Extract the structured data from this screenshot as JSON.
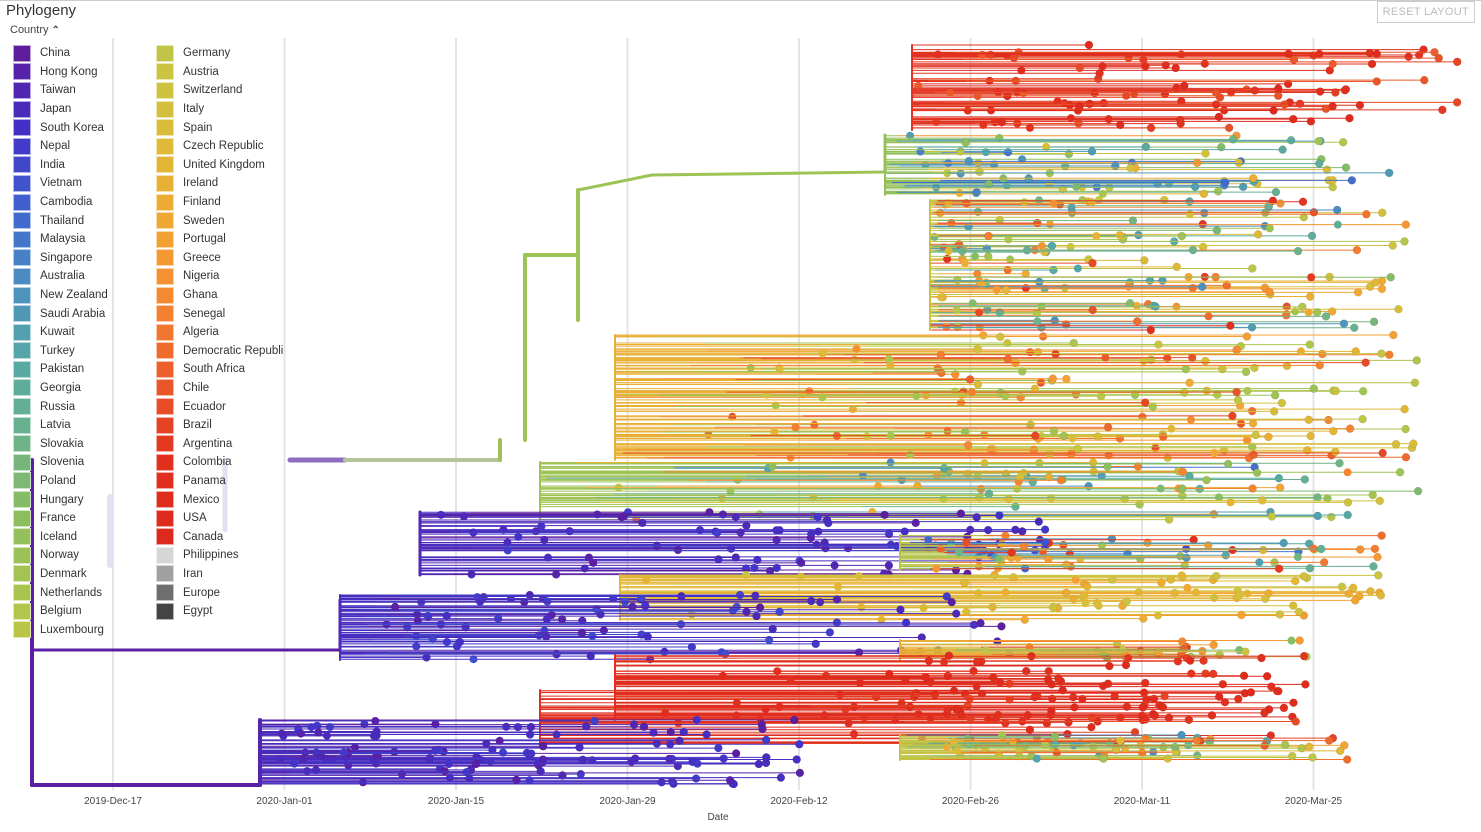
{
  "panel": {
    "title": "Phylogeny",
    "reset_label": "RESET LAYOUT"
  },
  "legend": {
    "title": "Country",
    "color_stops": [
      "#5e1d9d",
      "#4330c8",
      "#3f63cf",
      "#4c90c0",
      "#56a8a6",
      "#6cb38a",
      "#8bbe5f",
      "#aac54f",
      "#cbc441",
      "#e0b836",
      "#f3a533",
      "#f58432",
      "#ea5a2a",
      "#e2301f",
      "#dd2a1c"
    ],
    "countries": [
      "China",
      "Hong Kong",
      "Taiwan",
      "Japan",
      "South Korea",
      "Nepal",
      "India",
      "Vietnam",
      "Cambodia",
      "Thailand",
      "Malaysia",
      "Singapore",
      "Australia",
      "New Zealand",
      "Saudi Arabia",
      "Kuwait",
      "Turkey",
      "Pakistan",
      "Georgia",
      "Russia",
      "Latvia",
      "Slovakia",
      "Slovenia",
      "Poland",
      "Hungary",
      "France",
      "Iceland",
      "Norway",
      "Denmark",
      "Netherlands",
      "Belgium",
      "Luxembourg",
      "Germany",
      "Austria",
      "Switzerland",
      "Italy",
      "Spain",
      "Czech Republic",
      "United Kingdom",
      "Ireland",
      "Finland",
      "Sweden",
      "Portugal",
      "Greece",
      "Nigeria",
      "Ghana",
      "Senegal",
      "Algeria",
      "Democratic Republi",
      "South Africa",
      "Chile",
      "Ecuador",
      "Brazil",
      "Argentina",
      "Colombia",
      "Panama",
      "Mexico",
      "USA",
      "Canada"
    ],
    "grey_countries": [
      {
        "name": "Philippines",
        "color": "#d6d6d6"
      },
      {
        "name": "Iran",
        "color": "#a0a0a0"
      },
      {
        "name": "Europe",
        "color": "#6e6e6e"
      },
      {
        "name": "Egypt",
        "color": "#444444"
      }
    ]
  },
  "chart_data": {
    "type": "phylogenetic-tree",
    "title": "Phylogeny",
    "color_by": "Country",
    "xlabel": "Date",
    "x_ticks": [
      "2019-Dec-17",
      "2020-Jan-01",
      "2020-Jan-15",
      "2020-Jan-29",
      "2020-Feb-12",
      "2020-Feb-26",
      "2020-Mar-11",
      "2020-Mar-25"
    ],
    "x_range": [
      "2019-Dec-10",
      "2020-Apr-02"
    ],
    "grid": true
  }
}
